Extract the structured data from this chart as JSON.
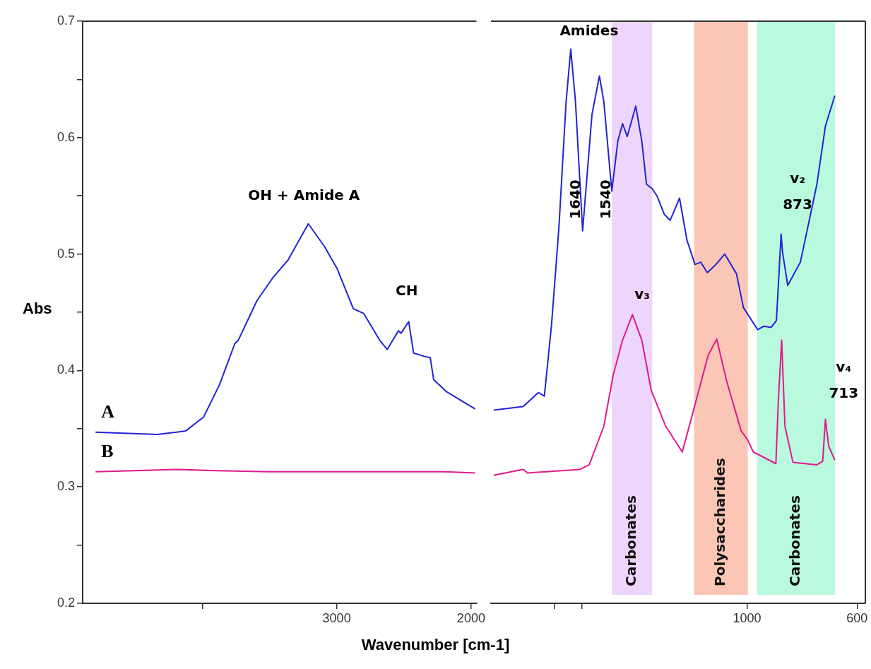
{
  "chart_data": [
    {
      "type": "line",
      "xlabel": "Wavenumber [cm-1]",
      "ylabel": "Abs",
      "xlim": [
        4890,
        1960
      ],
      "ylim": [
        0.2,
        0.7
      ],
      "xticks": [
        {
          "value": 4000,
          "label": null
        },
        3000,
        2000
      ],
      "yticks": [
        0.2,
        {
          "value": 0.25,
          "label": null
        },
        0.3,
        {
          "value": 0.35,
          "label": null
        },
        0.4,
        {
          "value": 0.45,
          "label": null
        },
        0.5,
        {
          "value": 0.55,
          "label": null
        },
        0.6,
        {
          "value": 0.65,
          "label": null
        },
        0.7
      ],
      "tick_labels": "xy",
      "series": [
        {
          "name": "A",
          "color": "#2323d6",
          "x": [
            4794,
            4335,
            4124,
            3990,
            3871,
            3758,
            3732,
            3593,
            3479,
            3361,
            3211,
            3088,
            2995,
            2876,
            2799,
            2680,
            2624,
            2541,
            2521,
            2464,
            2428,
            2345,
            2304,
            2278,
            2186,
            1970
          ],
          "values": [
            0.347,
            0.345,
            0.348,
            0.36,
            0.388,
            0.423,
            0.426,
            0.46,
            0.479,
            0.495,
            0.526,
            0.506,
            0.487,
            0.453,
            0.449,
            0.426,
            0.418,
            0.434,
            0.432,
            0.442,
            0.415,
            0.412,
            0.411,
            0.392,
            0.382,
            0.367
          ]
        },
        {
          "name": "B",
          "color": "#e0198c",
          "x": [
            4794,
            4500,
            4196,
            3900,
            3500,
            3000,
            2500,
            2200,
            1970
          ],
          "values": [
            0.313,
            0.314,
            0.315,
            0.314,
            0.313,
            0.313,
            0.313,
            0.313,
            0.312
          ]
        }
      ],
      "annotations": [
        "OH + Amide A",
        "CH"
      ]
    },
    {
      "type": "line",
      "xlim": [
        1930,
        570
      ],
      "ylim": [
        0.2,
        0.7
      ],
      "xticks": [
        {
          "value": 1700,
          "label": null
        },
        {
          "value": 1600,
          "label": null
        },
        1000,
        600
      ],
      "tick_labels": "x",
      "series": [
        {
          "color": "#2323d6",
          "x": [
            1920,
            1813,
            1758,
            1736,
            1710,
            1683,
            1657,
            1640,
            1623,
            1597,
            1563,
            1536,
            1520,
            1491,
            1469,
            1452,
            1435,
            1404,
            1382,
            1365,
            1344,
            1327,
            1300,
            1279,
            1245,
            1218,
            1189,
            1168,
            1144,
            1113,
            1081,
            1038,
            1013,
            961,
            939,
            912,
            893,
            876,
            871,
            852,
            806,
            746,
            715,
            681
          ],
          "values": [
            0.366,
            0.369,
            0.381,
            0.378,
            0.439,
            0.523,
            0.631,
            0.676,
            0.631,
            0.52,
            0.62,
            0.653,
            0.631,
            0.554,
            0.597,
            0.612,
            0.601,
            0.627,
            0.597,
            0.56,
            0.556,
            0.55,
            0.534,
            0.529,
            0.548,
            0.512,
            0.491,
            0.493,
            0.484,
            0.491,
            0.5,
            0.483,
            0.454,
            0.435,
            0.438,
            0.437,
            0.443,
            0.517,
            0.502,
            0.473,
            0.493,
            0.56,
            0.61,
            0.636
          ]
        },
        {
          "color": "#e0198c",
          "x": [
            1920,
            1813,
            1797,
            1606,
            1573,
            1520,
            1486,
            1452,
            1416,
            1382,
            1348,
            1295,
            1235,
            1194,
            1141,
            1110,
            1074,
            1021,
            999,
            977,
            895,
            886,
            874,
            862,
            833,
            746,
            725,
            715,
            703,
            681
          ],
          "values": [
            0.31,
            0.315,
            0.312,
            0.315,
            0.319,
            0.352,
            0.396,
            0.426,
            0.448,
            0.426,
            0.383,
            0.352,
            0.33,
            0.366,
            0.413,
            0.427,
            0.391,
            0.348,
            0.341,
            0.33,
            0.32,
            0.374,
            0.426,
            0.352,
            0.321,
            0.319,
            0.322,
            0.358,
            0.335,
            0.323
          ]
        }
      ],
      "bands": [
        {
          "axis": "x",
          "from": 1491,
          "to": 1344,
          "label": "Carbonates",
          "color": "#eed5fb"
        },
        {
          "axis": "x",
          "from": 1192,
          "to": 997,
          "label": "Polysaccharides",
          "color": "#fbc6b6"
        },
        {
          "axis": "x",
          "from": 963,
          "to": 679,
          "label": "Carbonates",
          "color": "#b9f9de"
        }
      ],
      "annotations": [
        "Amides",
        "1640",
        "1540",
        "v₃",
        "v₂",
        "873",
        "v₄",
        "713"
      ]
    }
  ]
}
